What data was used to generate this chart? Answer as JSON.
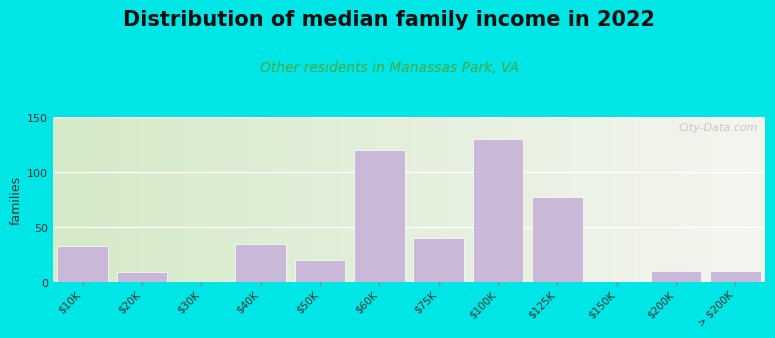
{
  "title": "Distribution of median family income in 2022",
  "subtitle": "Other residents in Manassas Park, VA",
  "ylabel": "families",
  "categories": [
    "$10K",
    "$20K",
    "$30K",
    "$40K",
    "$50K",
    "$60K",
    "$75K",
    "$100K",
    "$125K",
    "$150K",
    "$200K",
    "> $200K"
  ],
  "values": [
    33,
    9,
    0,
    35,
    20,
    120,
    40,
    130,
    77,
    0,
    10,
    10
  ],
  "bar_color": "#c9b8d8",
  "bar_edge_color": "#ffffff",
  "background_outer": "#00e5e5",
  "background_inner_left": "#d4eac8",
  "background_inner_right": "#f5f5f0",
  "ylim": [
    0,
    150
  ],
  "yticks": [
    0,
    50,
    100,
    150
  ],
  "title_fontsize": 15,
  "subtitle_fontsize": 10,
  "subtitle_color": "#44aa44",
  "ylabel_fontsize": 9,
  "watermark": "City-Data.com"
}
